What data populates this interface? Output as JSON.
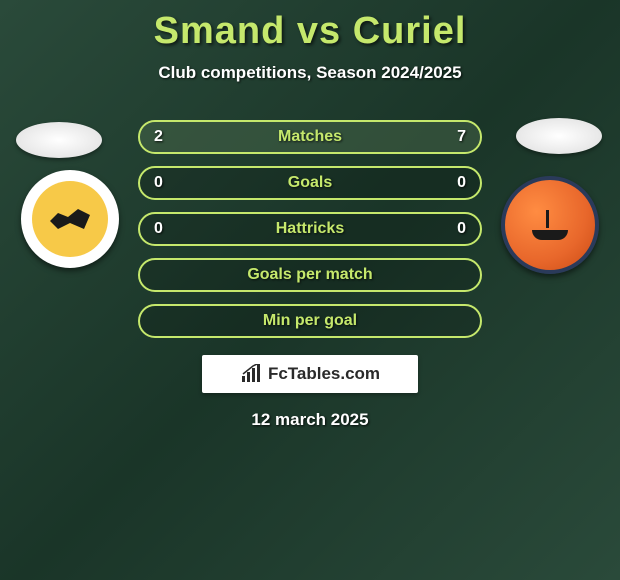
{
  "title": {
    "player1": "Smand",
    "vs": "vs",
    "player2": "Curiel",
    "player1_color": "#c5e86c",
    "vs_color": "#c5e86c",
    "player2_color": "#c5e86c"
  },
  "subtitle": "Club competitions, Season 2024/2025",
  "background": {
    "gradient_from": "#2a4a3a",
    "gradient_mid": "#1a3528",
    "gradient_to": "#2a4a3a"
  },
  "crest_left": {
    "outer_color": "#ffffff",
    "inner_color": "#f7c948",
    "glyph_color": "#1a1a1a"
  },
  "crest_right": {
    "bg_color": "#e8672b",
    "border_color": "#2a3a5a",
    "glyph_color": "#1a1a1a"
  },
  "stats": {
    "pill_border_color": "#c5e86c",
    "pill_bg_color": "rgba(0,0,0,0.15)",
    "label_color": "#c5e86c",
    "value_color": "#ffffff",
    "fill_color": "rgba(100,140,100,0.35)",
    "rows": [
      {
        "label": "Matches",
        "left": "2",
        "right": "7",
        "left_fill_pct": 22,
        "right_fill_pct": 78
      },
      {
        "label": "Goals",
        "left": "0",
        "right": "0",
        "left_fill_pct": 0,
        "right_fill_pct": 0
      },
      {
        "label": "Hattricks",
        "left": "0",
        "right": "0",
        "left_fill_pct": 0,
        "right_fill_pct": 0
      },
      {
        "label": "Goals per match",
        "left": "",
        "right": "",
        "left_fill_pct": 0,
        "right_fill_pct": 0
      },
      {
        "label": "Min per goal",
        "left": "",
        "right": "",
        "left_fill_pct": 0,
        "right_fill_pct": 0
      }
    ]
  },
  "branding": {
    "text": "FcTables.com",
    "bar_color": "#2a2a2a",
    "bg_color": "#ffffff"
  },
  "date": "12 march 2025"
}
